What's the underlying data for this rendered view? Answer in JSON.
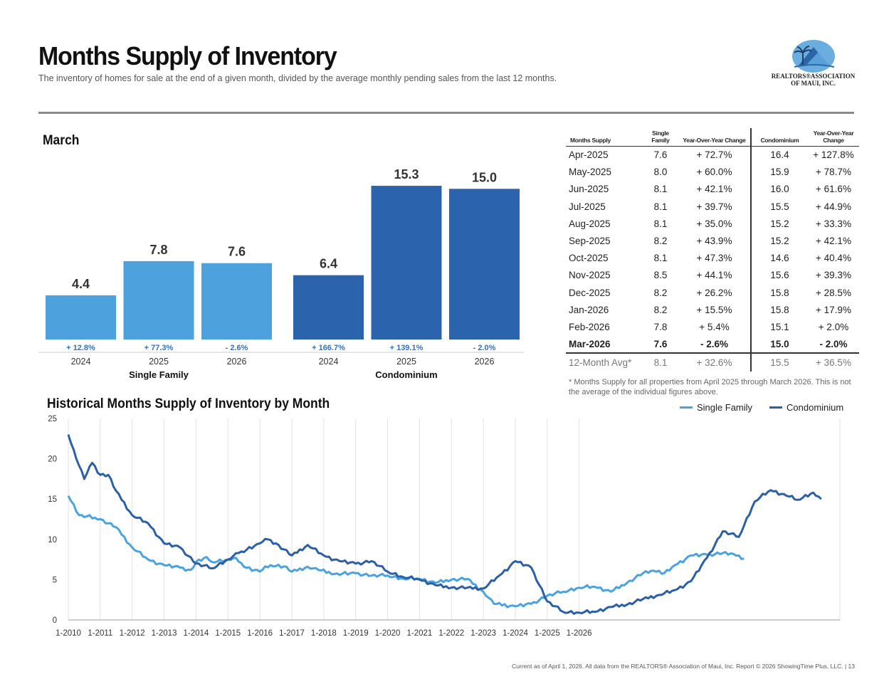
{
  "header": {
    "title": "Months Supply of Inventory",
    "subtitle": "The inventory of homes for sale at the end of a given month, divided by the average monthly pending sales from the last 12 months.",
    "logo_line1": "REALTORS®ASSOCIATION",
    "logo_line2": "OF MAUI, INC."
  },
  "bar_section": {
    "label": "March"
  },
  "line_section": {
    "label": "Historical Months Supply of Inventory by Month"
  },
  "colors": {
    "single_family_light": "#4da2de",
    "condo_dark": "#2b64ac",
    "change_text": "#2f72c0",
    "line_single": "#4aa3df",
    "line_condo": "#2c5fa3"
  },
  "table": {
    "headers": [
      "Months Supply",
      "Single Family",
      "Year-Over-Year Change",
      "Condominium",
      "Year-Over-Year Change"
    ],
    "rows": [
      [
        "Apr-2025",
        "7.6",
        "+ 72.7%",
        "16.4",
        "+ 127.8%"
      ],
      [
        "May-2025",
        "8.0",
        "+ 60.0%",
        "15.9",
        "+ 78.7%"
      ],
      [
        "Jun-2025",
        "8.1",
        "+ 42.1%",
        "16.0",
        "+ 61.6%"
      ],
      [
        "Jul-2025",
        "8.1",
        "+ 39.7%",
        "15.5",
        "+ 44.9%"
      ],
      [
        "Aug-2025",
        "8.1",
        "+ 35.0%",
        "15.2",
        "+ 33.3%"
      ],
      [
        "Sep-2025",
        "8.2",
        "+ 43.9%",
        "15.2",
        "+ 42.1%"
      ],
      [
        "Oct-2025",
        "8.1",
        "+ 47.3%",
        "14.6",
        "+ 40.4%"
      ],
      [
        "Nov-2025",
        "8.5",
        "+ 44.1%",
        "15.6",
        "+ 39.3%"
      ],
      [
        "Dec-2025",
        "8.2",
        "+ 26.2%",
        "15.8",
        "+ 28.5%"
      ],
      [
        "Jan-2026",
        "8.2",
        "+ 15.5%",
        "15.8",
        "+ 17.9%"
      ],
      [
        "Feb-2026",
        "7.8",
        "+ 5.4%",
        "15.1",
        "+ 2.0%"
      ],
      [
        "Mar-2026",
        "7.6",
        "- 2.6%",
        "15.0",
        "- 2.0%"
      ]
    ],
    "avg_row": [
      "12-Month Avg*",
      "8.1",
      "+ 32.6%",
      "15.5",
      "+ 36.5%"
    ],
    "footnote": "* Months Supply for all properties from April 2025 through March 2026. This is not the average of the individual figures above."
  },
  "footer": "Current as of April 1, 2026. All data from the REALTORS® Association of Maui, Inc. Report © 2026 ShowingTime Plus, LLC.  |  13",
  "chart_data": [
    {
      "type": "bar",
      "title": "March",
      "groups": [
        {
          "name": "Single Family",
          "categories": [
            "2024",
            "2025",
            "2026"
          ],
          "values": [
            4.4,
            7.8,
            7.6
          ],
          "value_labels": [
            "4.4",
            "7.8",
            "7.6"
          ],
          "changes": [
            "+ 12.8%",
            "+ 77.3%",
            "- 2.6%"
          ]
        },
        {
          "name": "Condominium",
          "categories": [
            "2024",
            "2025",
            "2026"
          ],
          "values": [
            6.4,
            15.3,
            15.0
          ],
          "value_labels": [
            "6.4",
            "15.3",
            "15.0"
          ],
          "changes": [
            "+ 166.7%",
            "+ 139.1%",
            "- 2.0%"
          ]
        }
      ],
      "ylim": [
        0,
        17.5
      ]
    },
    {
      "type": "line",
      "title": "Historical Months Supply of Inventory by Month",
      "x_labels": [
        "1-2010",
        "1-2011",
        "1-2012",
        "1-2013",
        "1-2014",
        "1-2015",
        "1-2016",
        "1-2017",
        "1-2018",
        "1-2019",
        "1-2020",
        "1-2021",
        "1-2022",
        "1-2023",
        "1-2024",
        "1-2025",
        "1-2026"
      ],
      "ylim": [
        0,
        25
      ],
      "yticks": [
        0,
        5,
        10,
        15,
        20,
        25
      ],
      "legend": [
        "Single Family",
        "Condominium"
      ],
      "series": [
        {
          "name": "Single Family",
          "anchors": [
            [
              0,
              15.4
            ],
            [
              4,
              13
            ],
            [
              12,
              12.5
            ],
            [
              18,
              11.5
            ],
            [
              24,
              9
            ],
            [
              30,
              7.5
            ],
            [
              36,
              6.8
            ],
            [
              42,
              6.5
            ],
            [
              46,
              6.2
            ],
            [
              48,
              7.2
            ],
            [
              52,
              7.8
            ],
            [
              54,
              7.2
            ],
            [
              60,
              7.5
            ],
            [
              63,
              7.7
            ],
            [
              66,
              6.6
            ],
            [
              72,
              6.0
            ],
            [
              76,
              6.8
            ],
            [
              82,
              6.6
            ],
            [
              84,
              6.0
            ],
            [
              90,
              6.6
            ],
            [
              94,
              6.2
            ],
            [
              100,
              5.7
            ],
            [
              108,
              5.8
            ],
            [
              114,
              5.5
            ],
            [
              120,
              5.5
            ],
            [
              126,
              5.1
            ],
            [
              132,
              5.1
            ],
            [
              138,
              4.6
            ],
            [
              144,
              5.0
            ],
            [
              150,
              5.1
            ],
            [
              156,
              3.5
            ],
            [
              160,
              2.0
            ],
            [
              168,
              1.7
            ],
            [
              174,
              2.0
            ],
            [
              180,
              3.0
            ],
            [
              186,
              3.5
            ],
            [
              192,
              4.0
            ],
            [
              198,
              4.1
            ],
            [
              204,
              3.5
            ],
            [
              210,
              4.6
            ],
            [
              216,
              5.8
            ],
            [
              220,
              6.1
            ],
            [
              224,
              5.8
            ],
            [
              228,
              6.8
            ],
            [
              234,
              8.0
            ],
            [
              240,
              8.1
            ],
            [
              246,
              8.3
            ],
            [
              250,
              8.2
            ],
            [
              254,
              7.6
            ]
          ]
        },
        {
          "name": "Condominium",
          "anchors": [
            [
              0,
              23.0
            ],
            [
              3,
              20
            ],
            [
              6,
              17.5
            ],
            [
              9,
              19.5
            ],
            [
              12,
              18
            ],
            [
              15,
              18
            ],
            [
              18,
              16
            ],
            [
              24,
              13
            ],
            [
              30,
              12.0
            ],
            [
              36,
              9.5
            ],
            [
              42,
              9.0
            ],
            [
              48,
              7.0
            ],
            [
              54,
              6.4
            ],
            [
              60,
              7.5
            ],
            [
              64,
              8.3
            ],
            [
              72,
              9.5
            ],
            [
              75,
              10.0
            ],
            [
              78,
              9.5
            ],
            [
              84,
              8.0
            ],
            [
              90,
              9.3
            ],
            [
              96,
              8.0
            ],
            [
              102,
              7.3
            ],
            [
              108,
              7.0
            ],
            [
              114,
              7.3
            ],
            [
              120,
              6.0
            ],
            [
              126,
              5.3
            ],
            [
              132,
              5.0
            ],
            [
              138,
              4.3
            ],
            [
              144,
              4.0
            ],
            [
              150,
              4.0
            ],
            [
              156,
              3.9
            ],
            [
              162,
              5.5
            ],
            [
              168,
              7.3
            ],
            [
              174,
              6.5
            ],
            [
              180,
              2.3
            ],
            [
              186,
              1.0
            ],
            [
              192,
              0.9
            ],
            [
              198,
              1.0
            ],
            [
              204,
              1.6
            ],
            [
              210,
              1.9
            ],
            [
              216,
              2.6
            ],
            [
              222,
              3.1
            ],
            [
              228,
              3.7
            ],
            [
              234,
              4.8
            ],
            [
              240,
              7.7
            ],
            [
              246,
              11.0
            ],
            [
              252,
              10.3
            ],
            [
              258,
              14.7
            ],
            [
              264,
              16.1
            ],
            [
              270,
              15.4
            ],
            [
              274,
              14.9
            ],
            [
              280,
              15.8
            ],
            [
              283,
              15.0
            ]
          ]
        }
      ]
    }
  ]
}
